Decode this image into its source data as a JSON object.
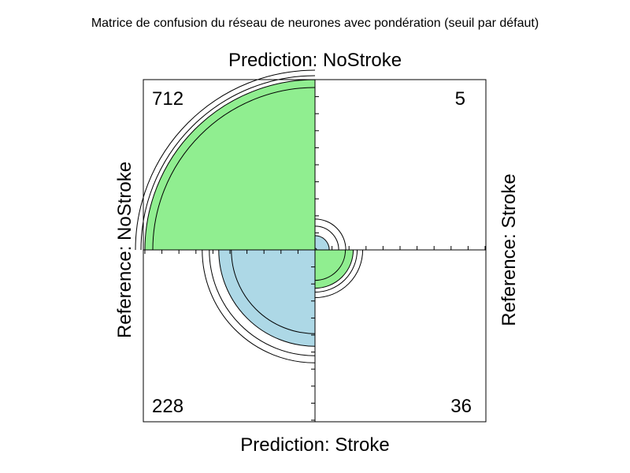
{
  "chart_data": {
    "type": "fourfold",
    "title": "Matrice de confusion du réseau de neurones avec pondération (seuil par défaut)",
    "top_label": "Prediction: NoStroke",
    "bottom_label": "Prediction: Stroke",
    "left_label": "Reference: NoStroke",
    "right_label": "Reference: Stroke",
    "cells": [
      {
        "prediction": "NoStroke",
        "reference": "NoStroke",
        "count": 712,
        "label": "712"
      },
      {
        "prediction": "NoStroke",
        "reference": "Stroke",
        "count": 5,
        "label": "5"
      },
      {
        "prediction": "Stroke",
        "reference": "NoStroke",
        "count": 228,
        "label": "228"
      },
      {
        "prediction": "Stroke",
        "reference": "Stroke",
        "count": 36,
        "label": "36"
      }
    ],
    "colors": {
      "agree": "#90EE90",
      "disagree": "#ADD8E6",
      "outline": "#000000"
    },
    "confidence_rings": true,
    "grid": false
  }
}
